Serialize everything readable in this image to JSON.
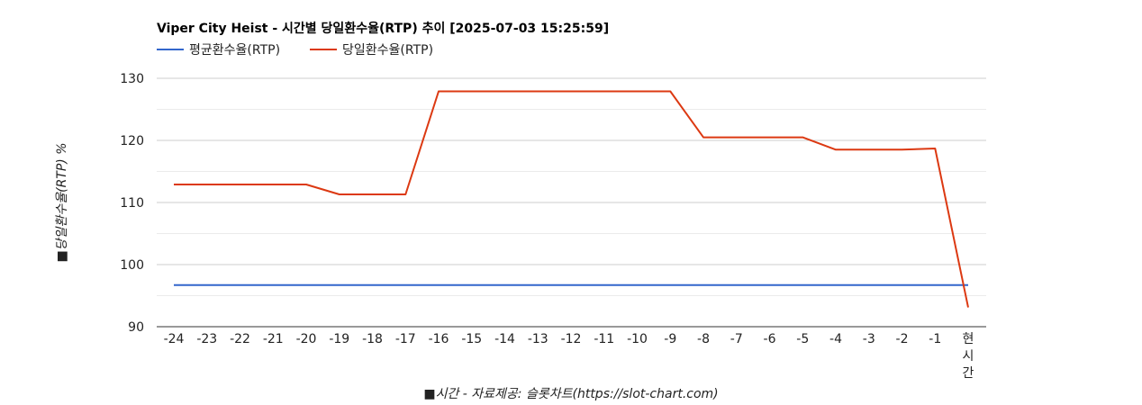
{
  "chart_data": {
    "type": "line",
    "title": "Viper City Heist - 시간별 당일환수율(RTP) 추이 [2025-07-03 15:25:59]",
    "xlabel": "■시간 - 자료제공: 슬롯차트(https://slot-chart.com)",
    "ylabel": "■당일환수율(RTP) %",
    "categories": [
      "-24",
      "-23",
      "-22",
      "-21",
      "-20",
      "-19",
      "-18",
      "-17",
      "-16",
      "-15",
      "-14",
      "-13",
      "-12",
      "-11",
      "-10",
      "-9",
      "-8",
      "-7",
      "-6",
      "-5",
      "-4",
      "-3",
      "-2",
      "-1",
      "현시간"
    ],
    "category_last_lines": [
      "현",
      "시",
      "간"
    ],
    "ylim": [
      90,
      130
    ],
    "yticks": [
      90,
      100,
      110,
      120,
      130
    ],
    "grid": true,
    "legend_position": "top-left",
    "series": [
      {
        "name": "평균환수율(RTP)",
        "color": "#3366cc",
        "values": [
          96.7,
          96.7,
          96.7,
          96.7,
          96.7,
          96.7,
          96.7,
          96.7,
          96.7,
          96.7,
          96.7,
          96.7,
          96.7,
          96.7,
          96.7,
          96.7,
          96.7,
          96.7,
          96.7,
          96.7,
          96.7,
          96.7,
          96.7,
          96.7,
          96.7
        ]
      },
      {
        "name": "당일환수율(RTP)",
        "color": "#dc3912",
        "values": [
          112.9,
          112.9,
          112.9,
          112.9,
          112.9,
          111.3,
          111.3,
          111.3,
          127.9,
          127.9,
          127.9,
          127.9,
          127.9,
          127.9,
          127.9,
          127.9,
          120.5,
          120.5,
          120.5,
          120.5,
          118.5,
          118.5,
          118.5,
          118.7,
          93.1
        ]
      }
    ]
  }
}
